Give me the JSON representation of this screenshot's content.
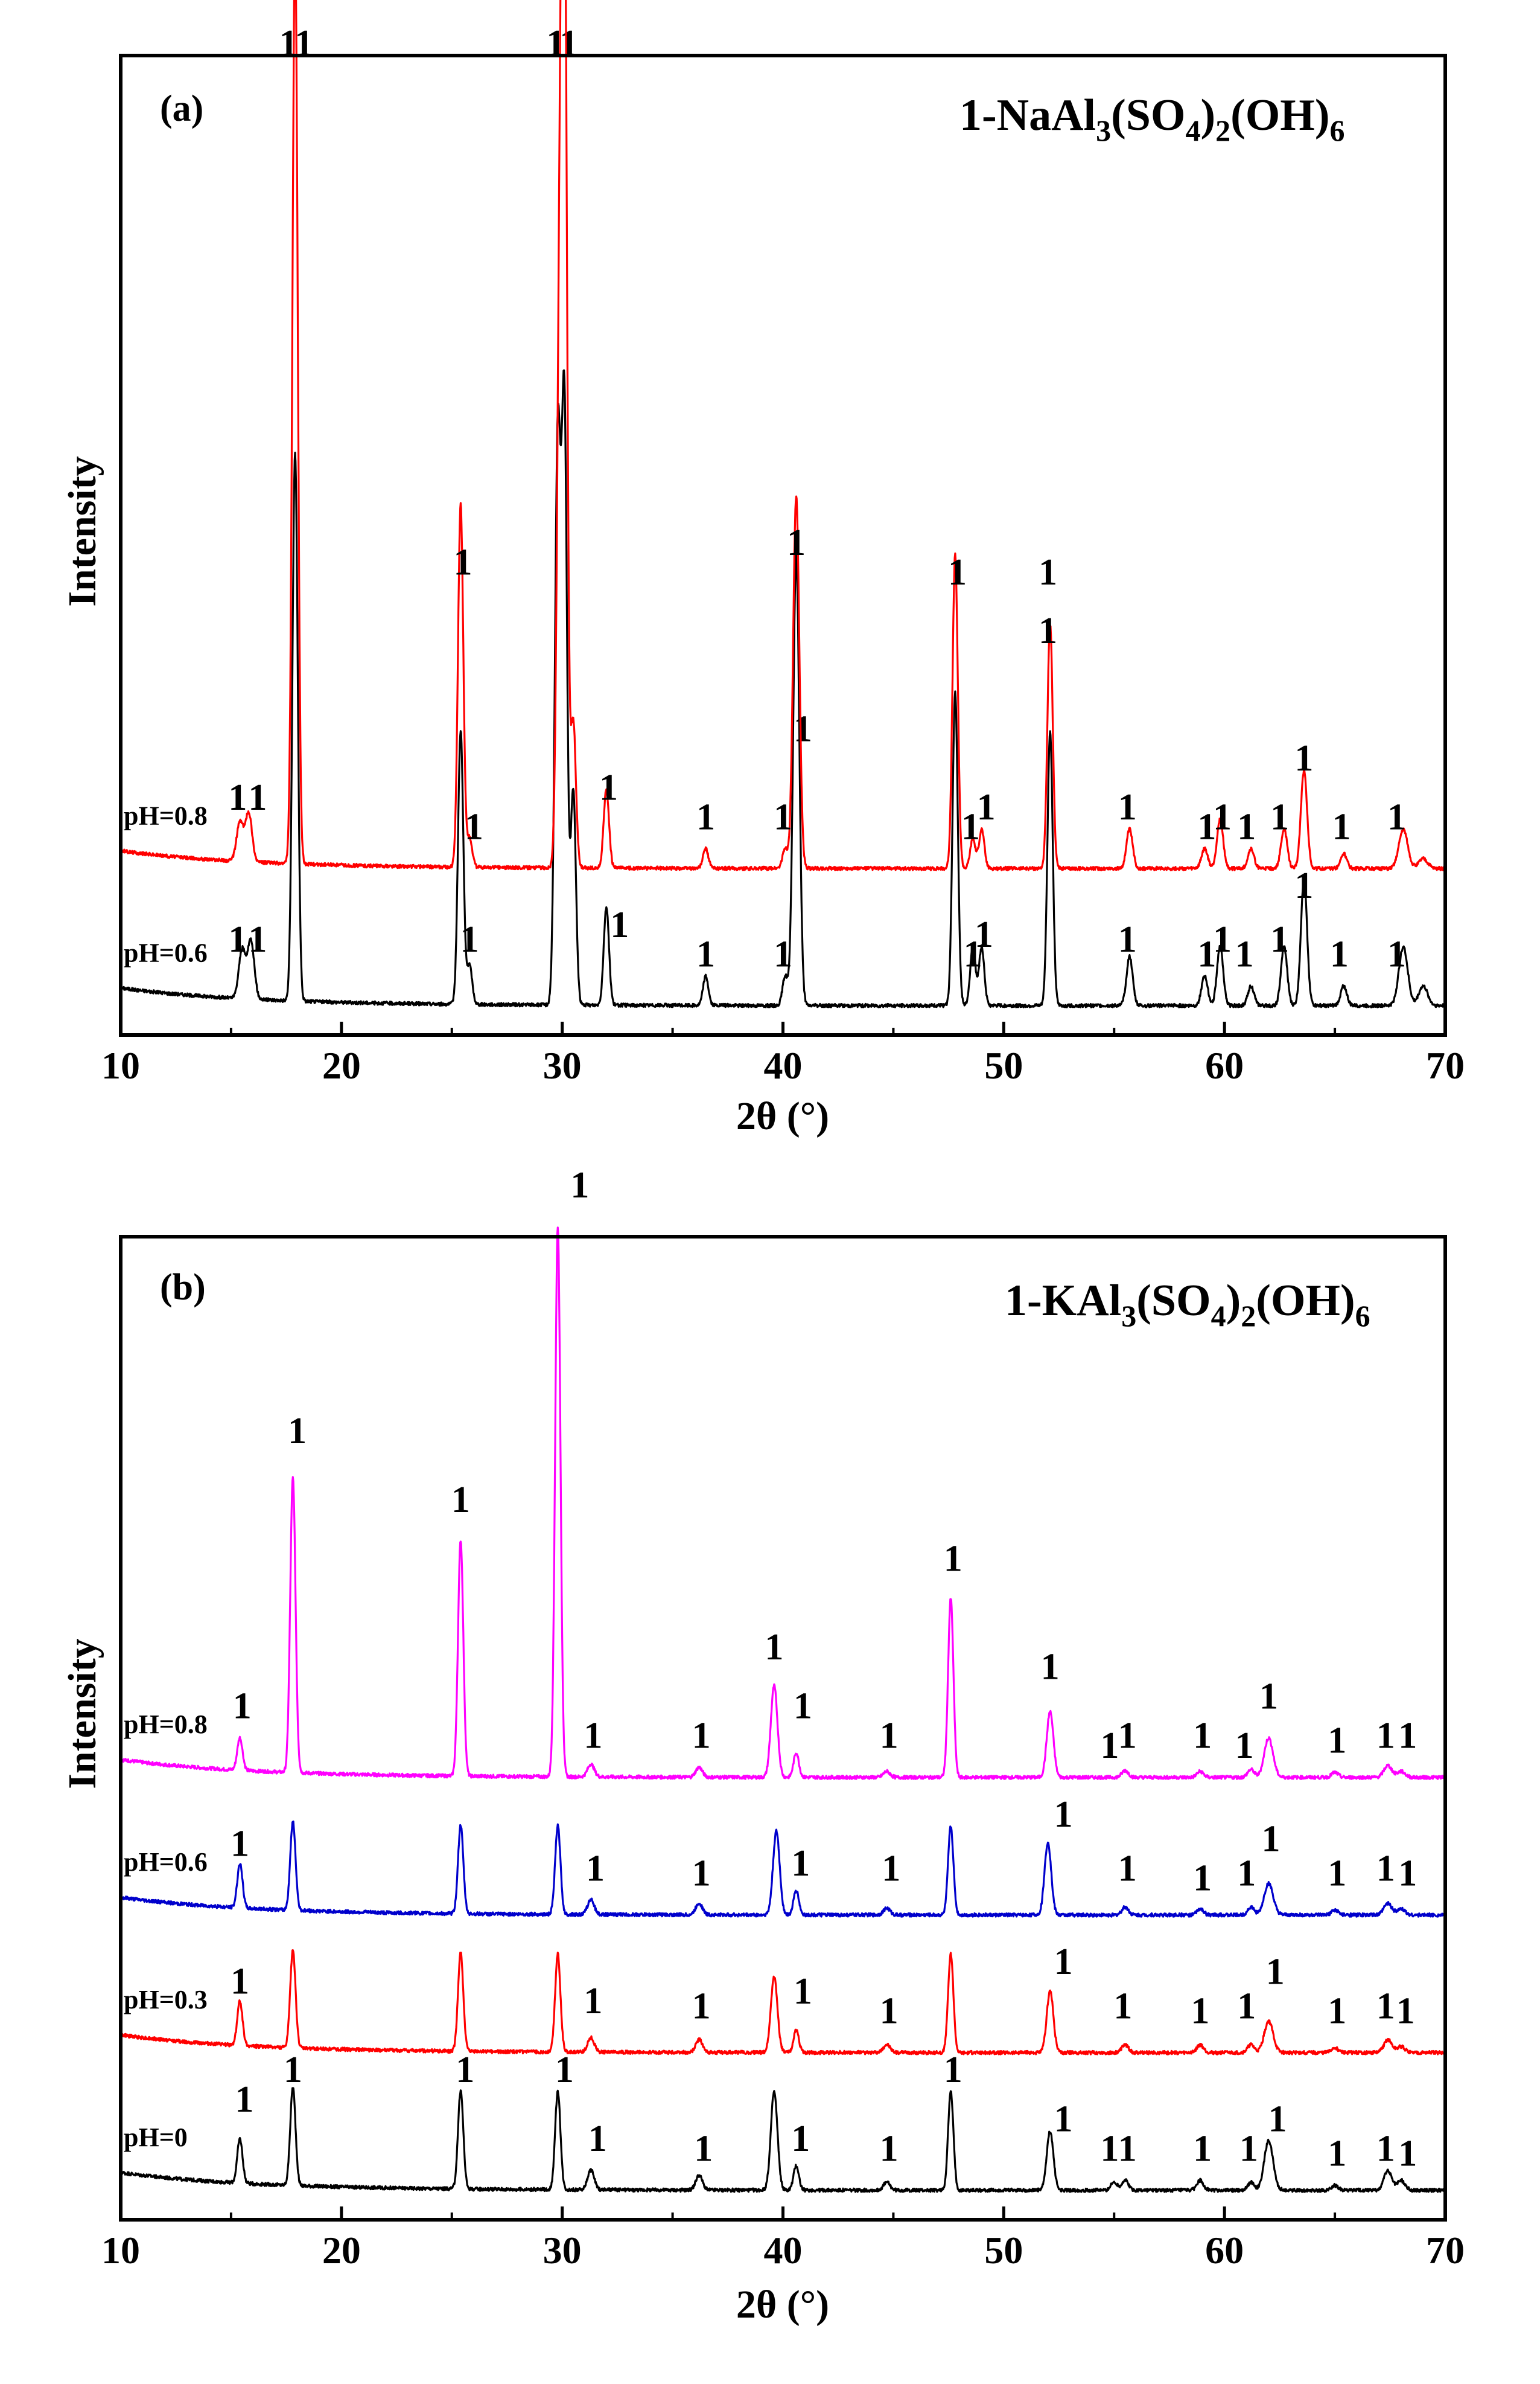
{
  "chart_data": [
    {
      "type": "line",
      "panel_label": "(a)",
      "title_prefix": "1-NaAl",
      "title_parts": [
        "1-NaAl",
        "3",
        "(SO",
        "4",
        ")",
        "2",
        "(OH)",
        "6"
      ],
      "xlabel": "2θ (°)",
      "ylabel": "Intensity",
      "xlim": [
        10,
        70
      ],
      "ylim": [
        0,
        100
      ],
      "xticks": [
        10,
        20,
        30,
        40,
        50,
        60,
        70
      ],
      "peak_marker_text": "1",
      "series": [
        {
          "name": "pH=0.6",
          "color": "#000000",
          "baseline": 3,
          "peaks": [
            [
              15.5,
              5,
              0.15
            ],
            [
              15.9,
              6,
              0.15
            ],
            [
              17.9,
              56,
              0.12
            ],
            [
              25.4,
              28,
              0.12
            ],
            [
              25.8,
              4,
              0.12
            ],
            [
              29.8,
              58,
              0.13
            ],
            [
              30.1,
              60,
              0.12
            ],
            [
              30.5,
              22,
              0.12
            ],
            [
              32.0,
              10,
              0.12
            ],
            [
              36.5,
              3,
              0.12
            ],
            [
              40.1,
              3,
              0.12
            ],
            [
              40.6,
              46,
              0.14
            ],
            [
              47.8,
              32,
              0.12
            ],
            [
              48.6,
              6,
              0.12
            ],
            [
              49.0,
              6,
              0.12
            ],
            [
              52.1,
              28,
              0.12
            ],
            [
              55.7,
              5,
              0.14
            ],
            [
              59.1,
              3,
              0.14
            ],
            [
              59.8,
              6,
              0.14
            ],
            [
              61.2,
              2,
              0.14
            ],
            [
              62.7,
              6,
              0.14
            ],
            [
              63.6,
              13,
              0.14
            ],
            [
              65.4,
              2,
              0.14
            ],
            [
              68.1,
              6,
              0.2
            ],
            [
              69.0,
              2,
              0.2
            ]
          ],
          "markers": [
            [
              15.3,
              8.5
            ],
            [
              16.2,
              8.5
            ],
            [
              18.3,
              100
            ],
            [
              25.8,
              8.5
            ],
            [
              30.3,
              100
            ],
            [
              32.6,
              10
            ],
            [
              36.5,
              7
            ],
            [
              40.0,
              7
            ],
            [
              40.9,
              30
            ],
            [
              48.6,
              7
            ],
            [
              49.1,
              9
            ],
            [
              52.0,
              46
            ],
            [
              55.6,
              8.5
            ],
            [
              59.2,
              7
            ],
            [
              59.9,
              8.5
            ],
            [
              60.9,
              7
            ],
            [
              62.5,
              8.5
            ],
            [
              63.6,
              14
            ],
            [
              65.2,
              7
            ],
            [
              67.8,
              7
            ]
          ]
        },
        {
          "name": "pH=0.8",
          "color": "#ff0000",
          "baseline": 17,
          "peaks": [
            [
              15.4,
              4,
              0.15
            ],
            [
              15.8,
              5,
              0.15
            ],
            [
              17.9,
              94,
              0.12
            ],
            [
              25.4,
              37,
              0.12
            ],
            [
              25.8,
              3,
              0.12
            ],
            [
              29.9,
              59,
              0.13
            ],
            [
              30.1,
              94,
              0.12
            ],
            [
              30.5,
              15,
              0.12
            ],
            [
              32.0,
              8,
              0.12
            ],
            [
              36.5,
              2,
              0.12
            ],
            [
              40.1,
              2,
              0.12
            ],
            [
              40.6,
              38,
              0.14
            ],
            [
              47.8,
              32,
              0.12
            ],
            [
              48.6,
              3,
              0.12
            ],
            [
              49.0,
              4,
              0.12
            ],
            [
              52.1,
              25,
              0.12
            ],
            [
              55.7,
              4,
              0.14
            ],
            [
              59.1,
              2,
              0.14
            ],
            [
              59.8,
              5,
              0.14
            ],
            [
              61.2,
              2,
              0.14
            ],
            [
              62.7,
              4,
              0.14
            ],
            [
              63.6,
              10,
              0.14
            ],
            [
              65.4,
              1.5,
              0.14
            ],
            [
              68.1,
              4,
              0.2
            ],
            [
              69.0,
              1,
              0.2
            ]
          ],
          "markers": [
            [
              15.3,
              23
            ],
            [
              16.2,
              23
            ],
            [
              17.6,
              100
            ],
            [
              25.5,
              47
            ],
            [
              26.0,
              20
            ],
            [
              29.7,
              100
            ],
            [
              32.1,
              24
            ],
            [
              36.5,
              21
            ],
            [
              40.0,
              21
            ],
            [
              40.6,
              49
            ],
            [
              48.5,
              20
            ],
            [
              49.2,
              22
            ],
            [
              47.9,
              46
            ],
            [
              52.0,
              40
            ],
            [
              55.6,
              22
            ],
            [
              59.2,
              20
            ],
            [
              59.9,
              21
            ],
            [
              61.0,
              20
            ],
            [
              62.5,
              21
            ],
            [
              63.6,
              27
            ],
            [
              65.3,
              20
            ],
            [
              67.8,
              21
            ]
          ]
        }
      ]
    },
    {
      "type": "line",
      "panel_label": "(b)",
      "title_prefix": "1-KAl",
      "title_parts": [
        "1-KAl",
        "3",
        "(SO",
        "4",
        ")",
        "2",
        "(OH)",
        "6"
      ],
      "xlabel": "2θ (°)",
      "ylabel": "Intensity",
      "xlim": [
        10,
        70
      ],
      "ylim": [
        0,
        100
      ],
      "xticks": [
        10,
        20,
        30,
        40,
        50,
        60,
        70
      ],
      "peak_marker_text": "1",
      "series": [
        {
          "name": "pH=0",
          "color": "#000000",
          "baseline": 3,
          "peaks": [
            [
              15.4,
              4.5,
              0.12
            ],
            [
              17.8,
              10,
              0.12
            ],
            [
              25.4,
              10,
              0.12
            ],
            [
              29.8,
              10,
              0.12
            ],
            [
              31.3,
              2,
              0.15
            ],
            [
              36.2,
              1.5,
              0.15
            ],
            [
              39.6,
              10,
              0.15
            ],
            [
              40.6,
              2.5,
              0.12
            ],
            [
              44.7,
              0.8,
              0.15
            ],
            [
              47.6,
              10,
              0.12
            ],
            [
              52.1,
              6,
              0.15
            ],
            [
              55.0,
              0.8,
              0.15
            ],
            [
              55.5,
              1,
              0.15
            ],
            [
              58.9,
              1,
              0.15
            ],
            [
              61.2,
              0.8,
              0.15
            ],
            [
              62.0,
              5,
              0.2
            ],
            [
              65.0,
              0.5,
              0.15
            ],
            [
              67.4,
              2,
              0.18
            ],
            [
              68.0,
              1,
              0.18
            ]
          ],
          "markers": [
            [
              15.6,
              11
            ],
            [
              17.8,
              14
            ],
            [
              25.6,
              14
            ],
            [
              30.1,
              14
            ],
            [
              31.6,
              7
            ],
            [
              36.4,
              6
            ],
            [
              40.8,
              7
            ],
            [
              44.8,
              6
            ],
            [
              47.7,
              14
            ],
            [
              52.7,
              9
            ],
            [
              54.8,
              6
            ],
            [
              55.6,
              6
            ],
            [
              59.0,
              6
            ],
            [
              61.1,
              6
            ],
            [
              62.4,
              9
            ],
            [
              65.1,
              5.5
            ],
            [
              67.3,
              6
            ],
            [
              68.3,
              5.5
            ]
          ]
        },
        {
          "name": "pH=0.3",
          "color": "#ff0000",
          "baseline": 17,
          "peaks": [
            [
              15.4,
              4.5,
              0.12
            ],
            [
              17.8,
              10,
              0.12
            ],
            [
              25.4,
              10,
              0.12
            ],
            [
              29.8,
              10,
              0.12
            ],
            [
              31.3,
              1.5,
              0.15
            ],
            [
              36.2,
              1.3,
              0.15
            ],
            [
              39.6,
              7.7,
              0.15
            ],
            [
              40.6,
              2.3,
              0.12
            ],
            [
              44.7,
              0.8,
              0.15
            ],
            [
              47.6,
              10,
              0.12
            ],
            [
              52.1,
              6.3,
              0.15
            ],
            [
              55.5,
              0.8,
              0.15
            ],
            [
              58.9,
              0.8,
              0.15
            ],
            [
              61.2,
              0.8,
              0.15
            ],
            [
              62.0,
              3.2,
              0.2
            ],
            [
              65.0,
              0.5,
              0.15
            ],
            [
              67.4,
              1.3,
              0.18
            ],
            [
              68.0,
              0.6,
              0.18
            ]
          ],
          "markers": [
            [
              15.4,
              23
            ],
            [
              31.4,
              21
            ],
            [
              36.3,
              20.5
            ],
            [
              40.9,
              22
            ],
            [
              44.8,
              20
            ],
            [
              52.7,
              25
            ],
            [
              55.4,
              20.5
            ],
            [
              58.9,
              20
            ],
            [
              61.0,
              20.5
            ],
            [
              62.3,
              24
            ],
            [
              65.1,
              20
            ],
            [
              67.3,
              20.5
            ],
            [
              68.2,
              20
            ]
          ]
        },
        {
          "name": "pH=0.6",
          "color": "#0000cc",
          "baseline": 31,
          "peaks": [
            [
              15.4,
              4.5,
              0.12
            ],
            [
              17.8,
              9,
              0.12
            ],
            [
              25.4,
              9,
              0.12
            ],
            [
              29.8,
              9,
              0.12
            ],
            [
              31.3,
              1.5,
              0.15
            ],
            [
              36.2,
              1.2,
              0.15
            ],
            [
              39.7,
              8.5,
              0.15
            ],
            [
              40.6,
              2.5,
              0.12
            ],
            [
              44.7,
              0.7,
              0.15
            ],
            [
              47.6,
              9,
              0.12
            ],
            [
              52.0,
              7.4,
              0.15
            ],
            [
              55.5,
              0.8,
              0.15
            ],
            [
              58.9,
              0.6,
              0.15
            ],
            [
              61.2,
              0.8,
              0.15
            ],
            [
              62.0,
              3.2,
              0.2
            ],
            [
              65.0,
              0.5,
              0.15
            ],
            [
              67.4,
              1.2,
              0.18
            ],
            [
              68.0,
              0.6,
              0.18
            ]
          ],
          "markers": [
            [
              15.4,
              37
            ],
            [
              31.5,
              34.5
            ],
            [
              36.3,
              34
            ],
            [
              40.8,
              35
            ],
            [
              44.9,
              34.5
            ],
            [
              52.7,
              40
            ],
            [
              55.6,
              34.5
            ],
            [
              59.0,
              33.5
            ],
            [
              61.0,
              34
            ],
            [
              62.1,
              37.5
            ],
            [
              65.1,
              34
            ],
            [
              67.3,
              34.5
            ],
            [
              68.3,
              34
            ]
          ]
        },
        {
          "name": "pH=0.8",
          "color": "#ff00ff",
          "baseline": 45,
          "peaks": [
            [
              15.4,
              3.3,
              0.12
            ],
            [
              17.8,
              30,
              0.12
            ],
            [
              25.4,
              24,
              0.12
            ],
            [
              29.8,
              56,
              0.12
            ],
            [
              31.3,
              1.3,
              0.15
            ],
            [
              36.2,
              1,
              0.15
            ],
            [
              39.6,
              9.3,
              0.15
            ],
            [
              40.6,
              2.5,
              0.12
            ],
            [
              44.7,
              0.6,
              0.15
            ],
            [
              47.6,
              18.2,
              0.12
            ],
            [
              52.1,
              6.7,
              0.15
            ],
            [
              55.5,
              0.7,
              0.15
            ],
            [
              58.9,
              0.6,
              0.15
            ],
            [
              61.2,
              0.8,
              0.15
            ],
            [
              62.0,
              4,
              0.2
            ],
            [
              65.0,
              0.5,
              0.15
            ],
            [
              67.4,
              1.2,
              0.18
            ],
            [
              68.0,
              0.6,
              0.18
            ]
          ],
          "markers": [
            [
              15.5,
              51
            ],
            [
              18.0,
              79
            ],
            [
              25.4,
              72
            ],
            [
              30.8,
              104
            ],
            [
              31.4,
              48
            ],
            [
              36.3,
              48
            ],
            [
              39.6,
              57
            ],
            [
              40.9,
              51
            ],
            [
              44.8,
              48
            ],
            [
              47.7,
              66
            ],
            [
              52.1,
              55
            ],
            [
              54.8,
              47
            ],
            [
              55.6,
              48
            ],
            [
              59.0,
              48
            ],
            [
              60.9,
              47
            ],
            [
              62.0,
              52
            ],
            [
              65.1,
              47.5
            ],
            [
              67.3,
              48
            ],
            [
              68.3,
              48
            ]
          ]
        }
      ]
    }
  ]
}
